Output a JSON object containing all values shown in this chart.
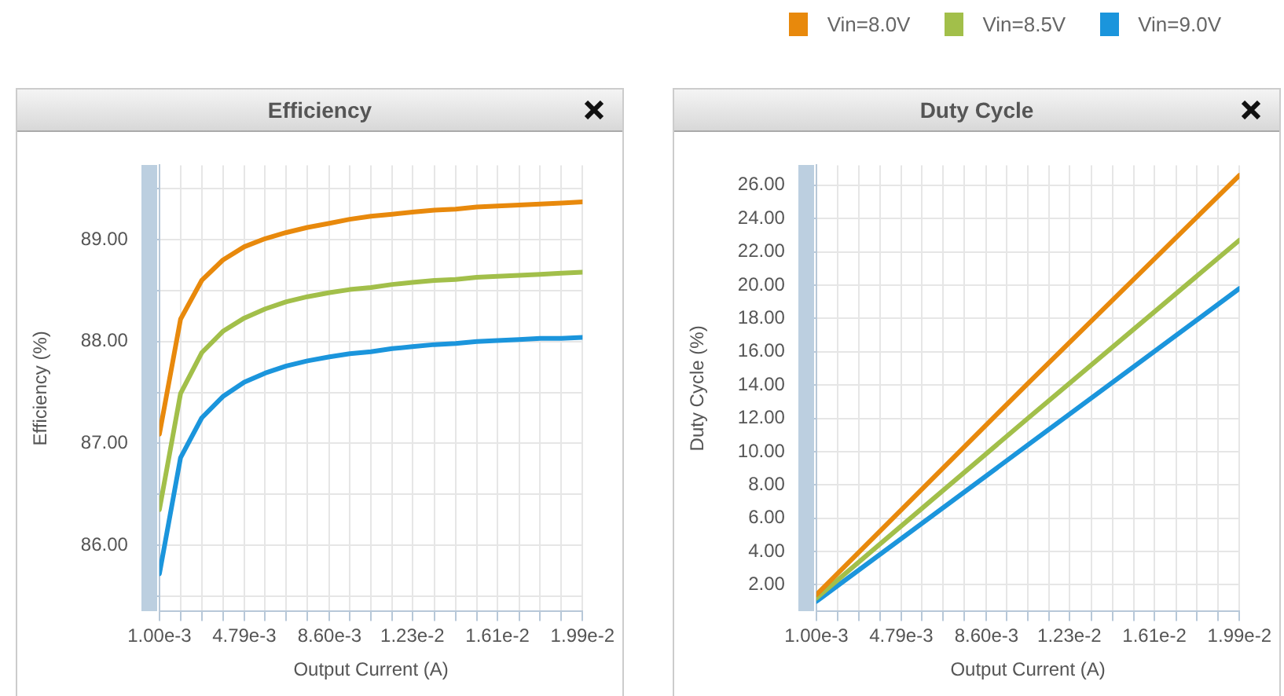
{
  "chart_data": [
    {
      "type": "line",
      "title": "Efficiency",
      "xlabel": "Output Current (A)",
      "ylabel": "Efficiency (%)",
      "legend": "top right",
      "grid": true,
      "marker": "none",
      "line_style": "solid",
      "x": [
        0.001,
        0.001945,
        0.00289,
        0.003835,
        0.00479,
        0.005725,
        0.00667,
        0.007615,
        0.0086,
        0.009505,
        0.01045,
        0.011395,
        0.0123,
        0.013285,
        0.01423,
        0.015175,
        0.0161,
        0.017065,
        0.01801,
        0.018955,
        0.0199
      ],
      "xlim": [
        0.001,
        0.0199
      ],
      "xticks": [
        {
          "value": 0.001,
          "label": "1.00e-3"
        },
        {
          "value": 0.001945,
          "label": null
        },
        {
          "value": 0.00289,
          "label": null
        },
        {
          "value": 0.003835,
          "label": null
        },
        {
          "value": 0.00479,
          "label": "4.79e-3"
        },
        {
          "value": 0.005725,
          "label": null
        },
        {
          "value": 0.00667,
          "label": null
        },
        {
          "value": 0.007615,
          "label": null
        },
        {
          "value": 0.0086,
          "label": "8.60e-3"
        },
        {
          "value": 0.009505,
          "label": null
        },
        {
          "value": 0.01045,
          "label": null
        },
        {
          "value": 0.011395,
          "label": null
        },
        {
          "value": 0.0123,
          "label": "1.23e-2"
        },
        {
          "value": 0.013285,
          "label": null
        },
        {
          "value": 0.01423,
          "label": null
        },
        {
          "value": 0.015175,
          "label": null
        },
        {
          "value": 0.0161,
          "label": "1.61e-2"
        },
        {
          "value": 0.017065,
          "label": null
        },
        {
          "value": 0.01801,
          "label": null
        },
        {
          "value": 0.018955,
          "label": null
        },
        {
          "value": 0.0199,
          "label": "1.99e-2"
        }
      ],
      "ylim": [
        85.35,
        89.73
      ],
      "yticks": [
        {
          "value": 85.5,
          "label": null
        },
        {
          "value": 86,
          "label": "86.00"
        },
        {
          "value": 86.5,
          "label": null
        },
        {
          "value": 87,
          "label": "87.00"
        },
        {
          "value": 87.5,
          "label": null
        },
        {
          "value": 88,
          "label": "88.00"
        },
        {
          "value": 88.5,
          "label": null
        },
        {
          "value": 89,
          "label": "89.00"
        },
        {
          "value": 89.5,
          "label": null
        }
      ],
      "series": [
        {
          "name": "Vin=8.0V",
          "color": "#e8890c",
          "values": [
            87.09,
            88.22,
            88.6,
            88.8,
            88.93,
            89.01,
            89.07,
            89.12,
            89.16,
            89.2,
            89.23,
            89.25,
            89.27,
            89.29,
            89.3,
            89.32,
            89.33,
            89.34,
            89.35,
            89.36,
            89.37
          ]
        },
        {
          "name": "Vin=8.5V",
          "color": "#a2bf4a",
          "values": [
            86.35,
            87.49,
            87.89,
            88.1,
            88.23,
            88.32,
            88.39,
            88.44,
            88.48,
            88.51,
            88.53,
            88.56,
            88.58,
            88.6,
            88.61,
            88.63,
            88.64,
            88.65,
            88.66,
            88.67,
            88.68
          ]
        },
        {
          "name": "Vin=9.0V",
          "color": "#1b95dc",
          "values": [
            85.72,
            86.86,
            87.25,
            87.46,
            87.6,
            87.69,
            87.76,
            87.81,
            87.85,
            87.88,
            87.9,
            87.93,
            87.95,
            87.97,
            87.98,
            88.0,
            88.01,
            88.02,
            88.03,
            88.03,
            88.04
          ]
        }
      ]
    },
    {
      "type": "line",
      "title": "Duty Cycle",
      "xlabel": "Output Current (A)",
      "ylabel": "Duty Cycle (%)",
      "grid": true,
      "marker": "none",
      "line_style": "solid",
      "x": [
        0.001,
        0.01045,
        0.0199
      ],
      "xlim": [
        0.001,
        0.0199
      ],
      "xticks": [
        {
          "value": 0.001,
          "label": "1.00e-3"
        },
        {
          "value": 0.001945,
          "label": null
        },
        {
          "value": 0.00289,
          "label": null
        },
        {
          "value": 0.003835,
          "label": null
        },
        {
          "value": 0.00479,
          "label": "4.79e-3"
        },
        {
          "value": 0.005725,
          "label": null
        },
        {
          "value": 0.00667,
          "label": null
        },
        {
          "value": 0.007615,
          "label": null
        },
        {
          "value": 0.0086,
          "label": "8.60e-3"
        },
        {
          "value": 0.009505,
          "label": null
        },
        {
          "value": 0.01045,
          "label": null
        },
        {
          "value": 0.011395,
          "label": null
        },
        {
          "value": 0.0123,
          "label": "1.23e-2"
        },
        {
          "value": 0.013285,
          "label": null
        },
        {
          "value": 0.01423,
          "label": null
        },
        {
          "value": 0.015175,
          "label": null
        },
        {
          "value": 0.0161,
          "label": "1.61e-2"
        },
        {
          "value": 0.017065,
          "label": null
        },
        {
          "value": 0.01801,
          "label": null
        },
        {
          "value": 0.018955,
          "label": null
        },
        {
          "value": 0.0199,
          "label": "1.99e-2"
        }
      ],
      "ylim": [
        0.4,
        27.2
      ],
      "yticks": [
        {
          "value": 2,
          "label": "2.00"
        },
        {
          "value": 4,
          "label": "4.00"
        },
        {
          "value": 6,
          "label": "6.00"
        },
        {
          "value": 8,
          "label": "8.00"
        },
        {
          "value": 10,
          "label": "10.00"
        },
        {
          "value": 12,
          "label": "12.00"
        },
        {
          "value": 14,
          "label": "14.00"
        },
        {
          "value": 16,
          "label": "16.00"
        },
        {
          "value": 18,
          "label": "18.00"
        },
        {
          "value": 20,
          "label": "20.00"
        },
        {
          "value": 22,
          "label": "22.00"
        },
        {
          "value": 24,
          "label": "24.00"
        },
        {
          "value": 26,
          "label": "26.00"
        }
      ],
      "series": [
        {
          "color": "#e8890c",
          "values": [
            1.4,
            14.1,
            26.6
          ]
        },
        {
          "color": "#a2bf4a",
          "values": [
            1.2,
            12.0,
            22.7
          ]
        },
        {
          "color": "#1b95dc",
          "values": [
            1.0,
            10.4,
            19.8
          ]
        }
      ]
    }
  ]
}
